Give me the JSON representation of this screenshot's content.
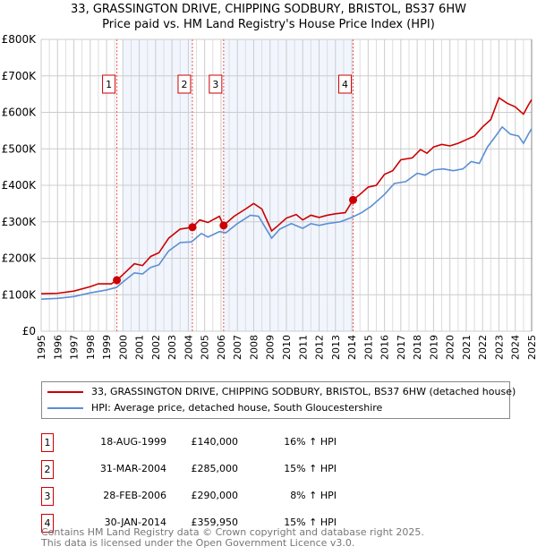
{
  "title": "33, GRASSINGTON DRIVE, CHIPPING SODBURY, BRISTOL, BS37 6HW",
  "subtitle": "Price paid vs. HM Land Registry's House Price Index (HPI)",
  "chart_data": {
    "type": "line",
    "xlim": [
      1995,
      2025
    ],
    "ylim": [
      0,
      800000
    ],
    "yticks": [
      {
        "v": 0,
        "label": "£0"
      },
      {
        "v": 100000,
        "label": "£100K"
      },
      {
        "v": 200000,
        "label": "£200K"
      },
      {
        "v": 300000,
        "label": "£300K"
      },
      {
        "v": 400000,
        "label": "£400K"
      },
      {
        "v": 500000,
        "label": "£500K"
      },
      {
        "v": 600000,
        "label": "£600K"
      },
      {
        "v": 700000,
        "label": "£700K"
      },
      {
        "v": 800000,
        "label": "£800K"
      }
    ],
    "xticks": [
      "1995",
      "1996",
      "1997",
      "1998",
      "1999",
      "2000",
      "2001",
      "2002",
      "2003",
      "2004",
      "2005",
      "2006",
      "2007",
      "2008",
      "2009",
      "2010",
      "2011",
      "2012",
      "2013",
      "2014",
      "2015",
      "2016",
      "2017",
      "2018",
      "2019",
      "2020",
      "2021",
      "2022",
      "2023",
      "2024",
      "2025"
    ],
    "shaded": [
      [
        2000.0,
        2004.25
      ],
      [
        2006.16,
        2014.08
      ]
    ],
    "series": [
      {
        "name": "33, GRASSINGTON DRIVE, CHIPPING SODBURY, BRISTOL, BS37 6HW (detached house)",
        "color": "#cc0000",
        "x": [
          1995,
          1996,
          1997,
          1998,
          1998.5,
          1999.3,
          1999.63,
          2000,
          2000.7,
          2001.2,
          2001.7,
          2002.2,
          2002.8,
          2003.5,
          2004.25,
          2004.7,
          2005.2,
          2005.9,
          2006.16,
          2006.8,
          2007.5,
          2008,
          2008.5,
          2009.1,
          2009.5,
          2010,
          2010.6,
          2011,
          2011.5,
          2012,
          2012.5,
          2013,
          2013.6,
          2014.08,
          2014.5,
          2015,
          2015.5,
          2016,
          2016.5,
          2017,
          2017.7,
          2018.2,
          2018.6,
          2019,
          2019.5,
          2020,
          2020.5,
          2021,
          2021.5,
          2022,
          2022.5,
          2023,
          2023.5,
          2024,
          2024.5,
          2024.8,
          2025
        ],
        "y": [
          103,
          104,
          110,
          122,
          130,
          130,
          140,
          155,
          185,
          180,
          205,
          215,
          255,
          280,
          285,
          305,
          298,
          315,
          290,
          315,
          335,
          350,
          335,
          275,
          290,
          310,
          320,
          305,
          318,
          312,
          318,
          322,
          325,
          360,
          375,
          395,
          400,
          430,
          440,
          470,
          475,
          498,
          488,
          505,
          512,
          508,
          515,
          525,
          535,
          560,
          580,
          640,
          625,
          615,
          595,
          620,
          635
        ]
      },
      {
        "name": "HPI: Average price, detached house, South Gloucestershire",
        "color": "#5b8fd4",
        "x": [
          1995,
          1996,
          1997,
          1998,
          1999,
          1999.6,
          2000,
          2000.7,
          2001.2,
          2001.7,
          2002.2,
          2002.8,
          2003.5,
          2004.2,
          2004.8,
          2005.2,
          2005.9,
          2006.3,
          2007,
          2007.8,
          2008.3,
          2009.1,
          2009.6,
          2010.3,
          2011,
          2011.5,
          2012,
          2012.5,
          2013.3,
          2014,
          2014.6,
          2015.2,
          2016,
          2016.6,
          2017.3,
          2018,
          2018.5,
          2019,
          2019.6,
          2020.2,
          2020.8,
          2021.3,
          2021.8,
          2022.3,
          2022.8,
          2023.2,
          2023.7,
          2024.2,
          2024.5,
          2024.8,
          2025
        ],
        "y": [
          88,
          90,
          95,
          105,
          113,
          120,
          135,
          160,
          157,
          175,
          182,
          220,
          243,
          245,
          268,
          258,
          273,
          270,
          295,
          318,
          315,
          255,
          280,
          295,
          282,
          295,
          290,
          295,
          300,
          312,
          325,
          343,
          375,
          405,
          410,
          433,
          428,
          442,
          445,
          440,
          445,
          465,
          460,
          505,
          535,
          560,
          540,
          535,
          515,
          540,
          555
        ]
      }
    ],
    "y_unit": "thousands GBP",
    "sales": [
      {
        "n": "1",
        "x": 1999.63,
        "y": 140,
        "date": "18-AUG-1999",
        "price": "£140,000",
        "hpi": "16% ↑ HPI"
      },
      {
        "n": "2",
        "x": 2004.25,
        "y": 285,
        "date": "31-MAR-2004",
        "price": "£285,000",
        "hpi": "15% ↑ HPI"
      },
      {
        "n": "3",
        "x": 2006.16,
        "y": 290,
        "date": "28-FEB-2006",
        "price": "£290,000",
        "hpi": "8% ↑ HPI"
      },
      {
        "n": "4",
        "x": 2014.08,
        "y": 359.95,
        "date": "30-JAN-2014",
        "price": "£359,950",
        "hpi": "15% ↑ HPI"
      }
    ]
  },
  "footer": {
    "line1": "Contains HM Land Registry data © Crown copyright and database right 2025.",
    "line2": "This data is licensed under the Open Government Licence v3.0."
  }
}
